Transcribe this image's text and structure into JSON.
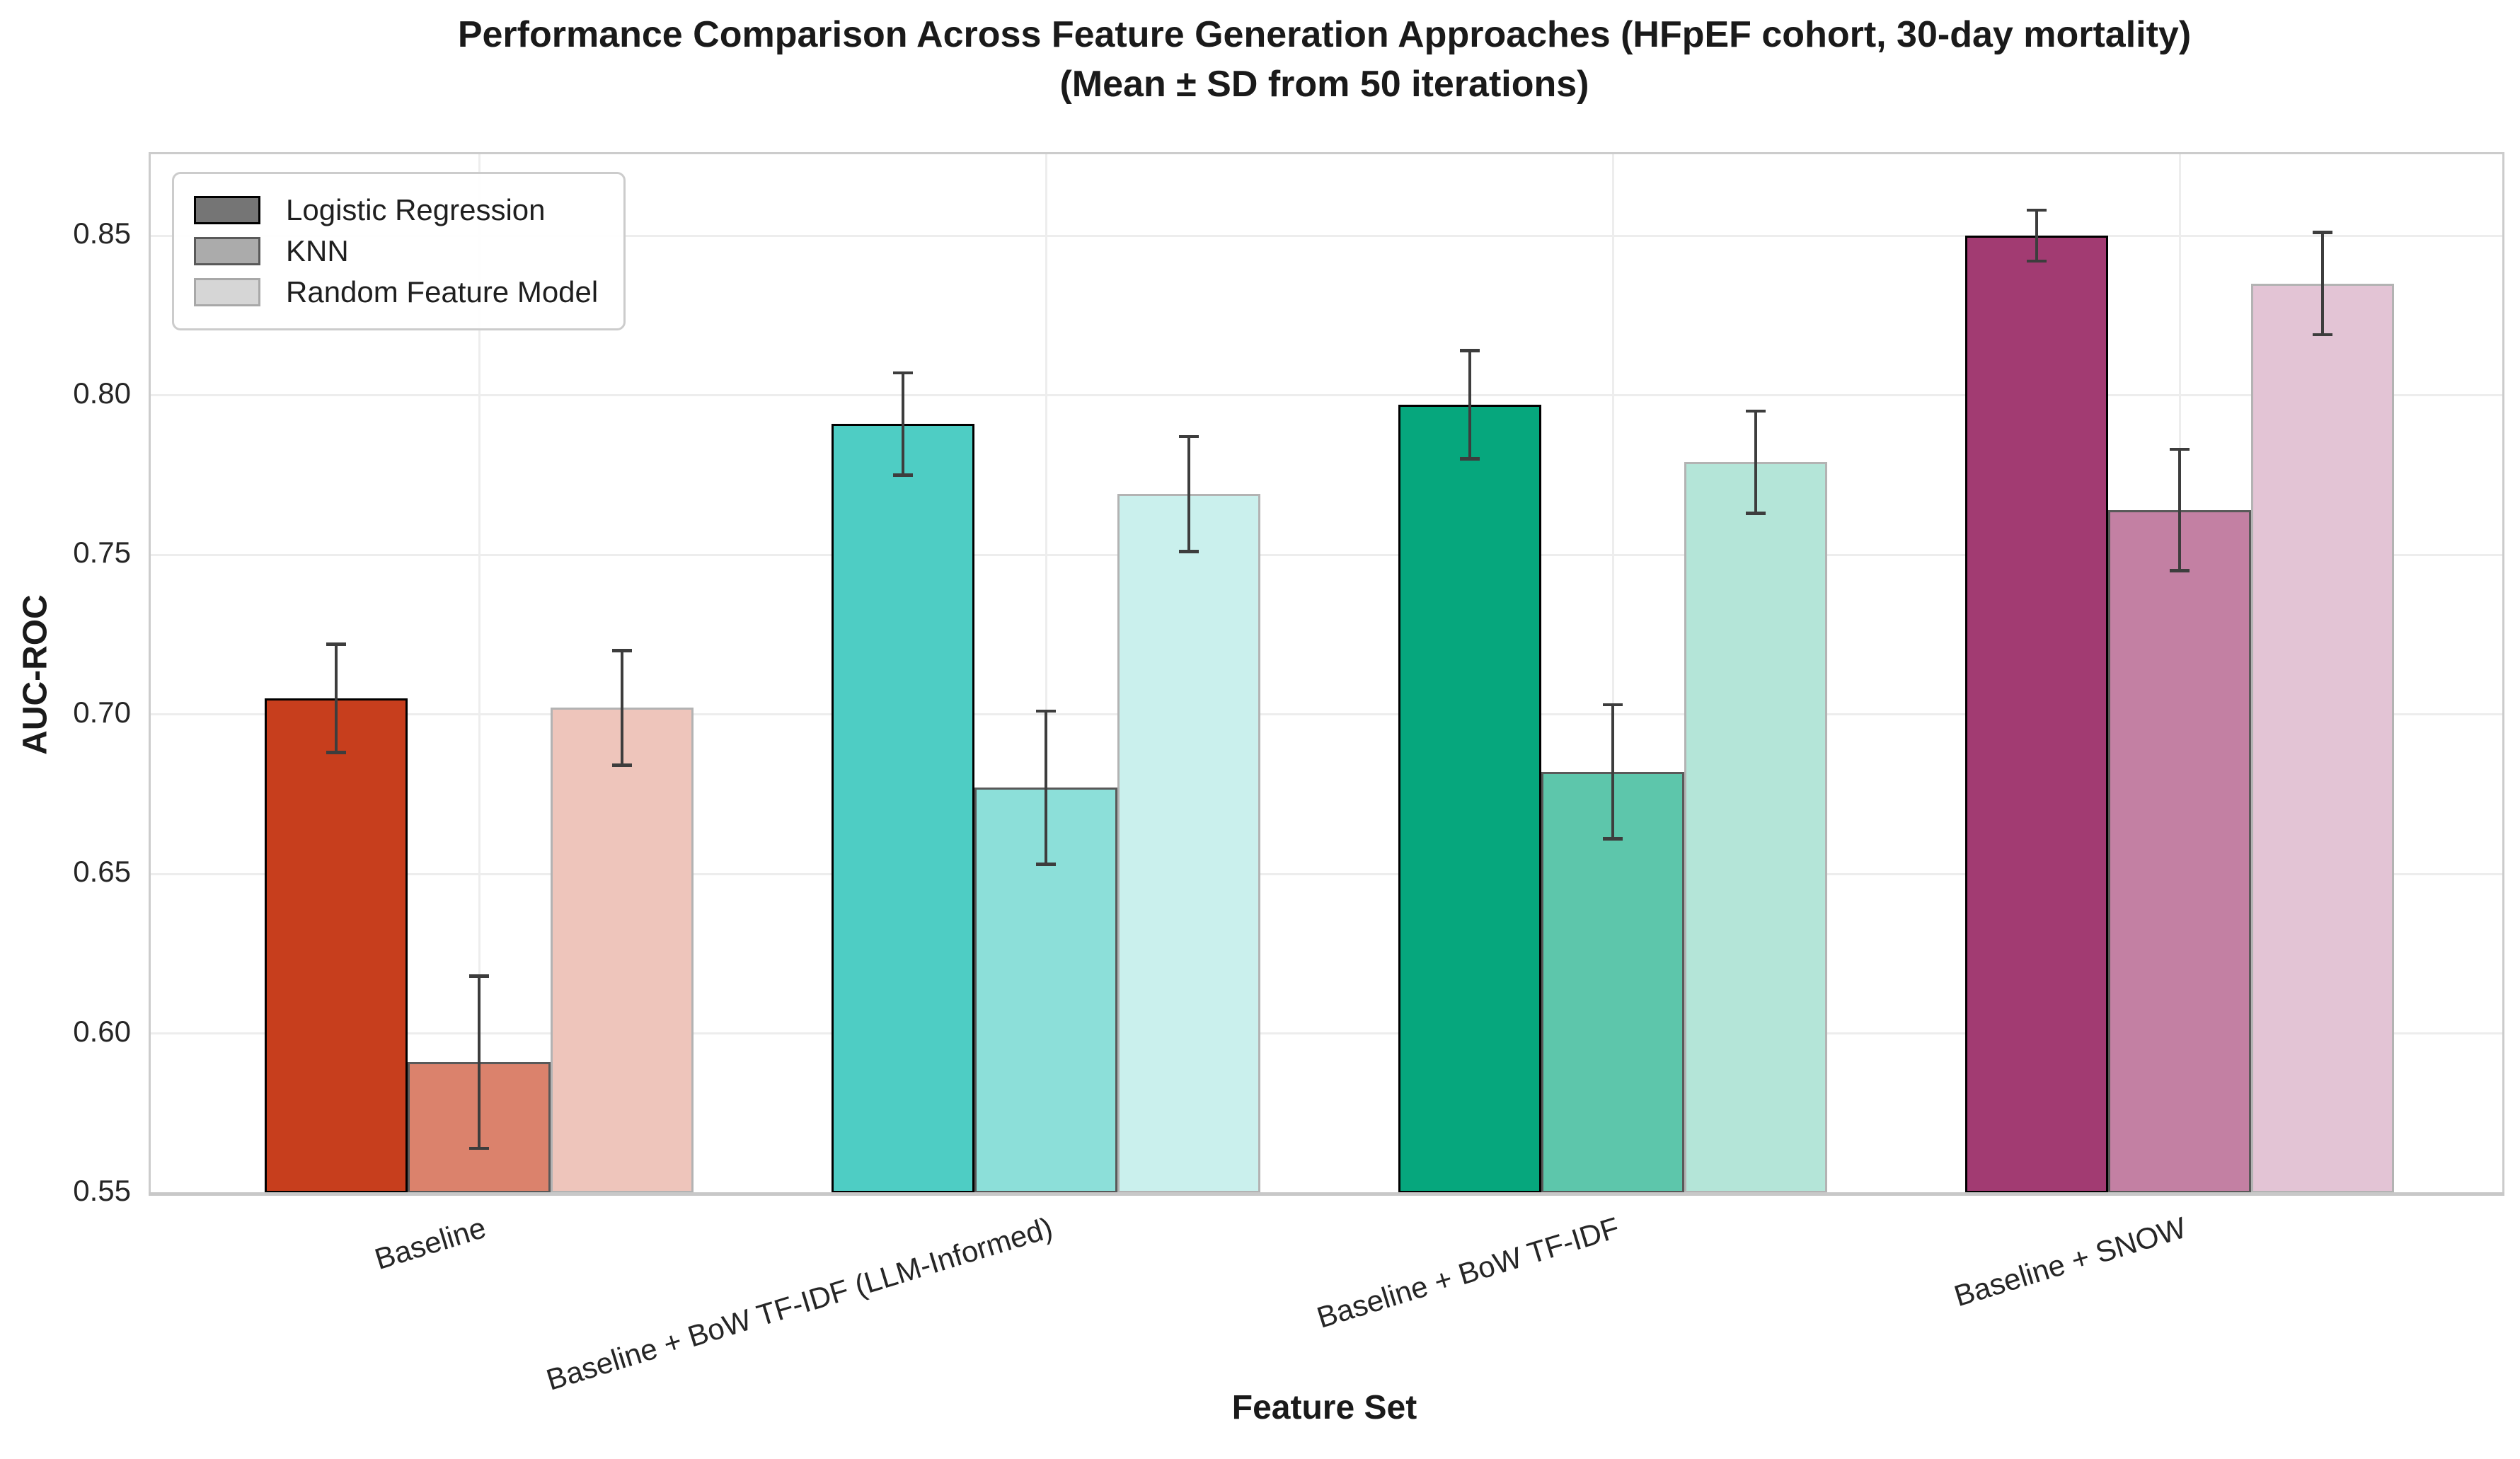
{
  "chart_data": {
    "type": "bar",
    "title": "Performance Comparison Across Feature Generation Approaches (HFpEF cohort, 30-day mortality)",
    "subtitle": "(Mean ± SD from 50 iterations)",
    "xlabel": "Feature Set",
    "ylabel": "AUC-ROC",
    "ylim": [
      0.55,
      0.8755
    ],
    "yticks": [
      "0.55",
      "0.60",
      "0.65",
      "0.70",
      "0.75",
      "0.80",
      "0.85"
    ],
    "ytick_values": [
      0.55,
      0.6,
      0.65,
      0.7,
      0.75,
      0.8,
      0.85
    ],
    "grid": true,
    "legend_position": "upper left",
    "categories": [
      "Baseline",
      "Baseline + BoW TF-IDF (LLM-Informed)",
      "Baseline + BoW TF-IDF",
      "Baseline + SNOW"
    ],
    "group_base_colors": [
      "#C73E1D",
      "#4ECDC4",
      "#06A77D",
      "#A23B72"
    ],
    "series": [
      {
        "name": "Logistic Regression",
        "alpha": 1.0,
        "values": [
          0.705,
          0.791,
          0.797,
          0.85
        ],
        "errors": [
          0.017,
          0.016,
          0.017,
          0.008
        ],
        "edge_color": "#000000",
        "legend_swatch_fill": "#757575",
        "legend_swatch_edge": "#000000"
      },
      {
        "name": "KNN",
        "alpha": 0.65,
        "values": [
          0.591,
          0.677,
          0.682,
          0.764
        ],
        "errors": [
          0.027,
          0.024,
          0.021,
          0.019
        ],
        "edge_color": "#595959",
        "legend_swatch_fill": "#ABABAB",
        "legend_swatch_edge": "#595959"
      },
      {
        "name": "Random Feature Model",
        "alpha": 0.3,
        "values": [
          0.702,
          0.769,
          0.779,
          0.835
        ],
        "errors": [
          0.018,
          0.018,
          0.016,
          0.016
        ],
        "edge_color": "#B3B3B3",
        "legend_swatch_fill": "#D6D6D6",
        "legend_swatch_edge": "#A8A8A8"
      }
    ],
    "colors": {
      "error_bar": "#3D3D3D",
      "grid": "#EDEDED",
      "spine": "#CCCCCC",
      "text": "#1A1A1A"
    }
  }
}
